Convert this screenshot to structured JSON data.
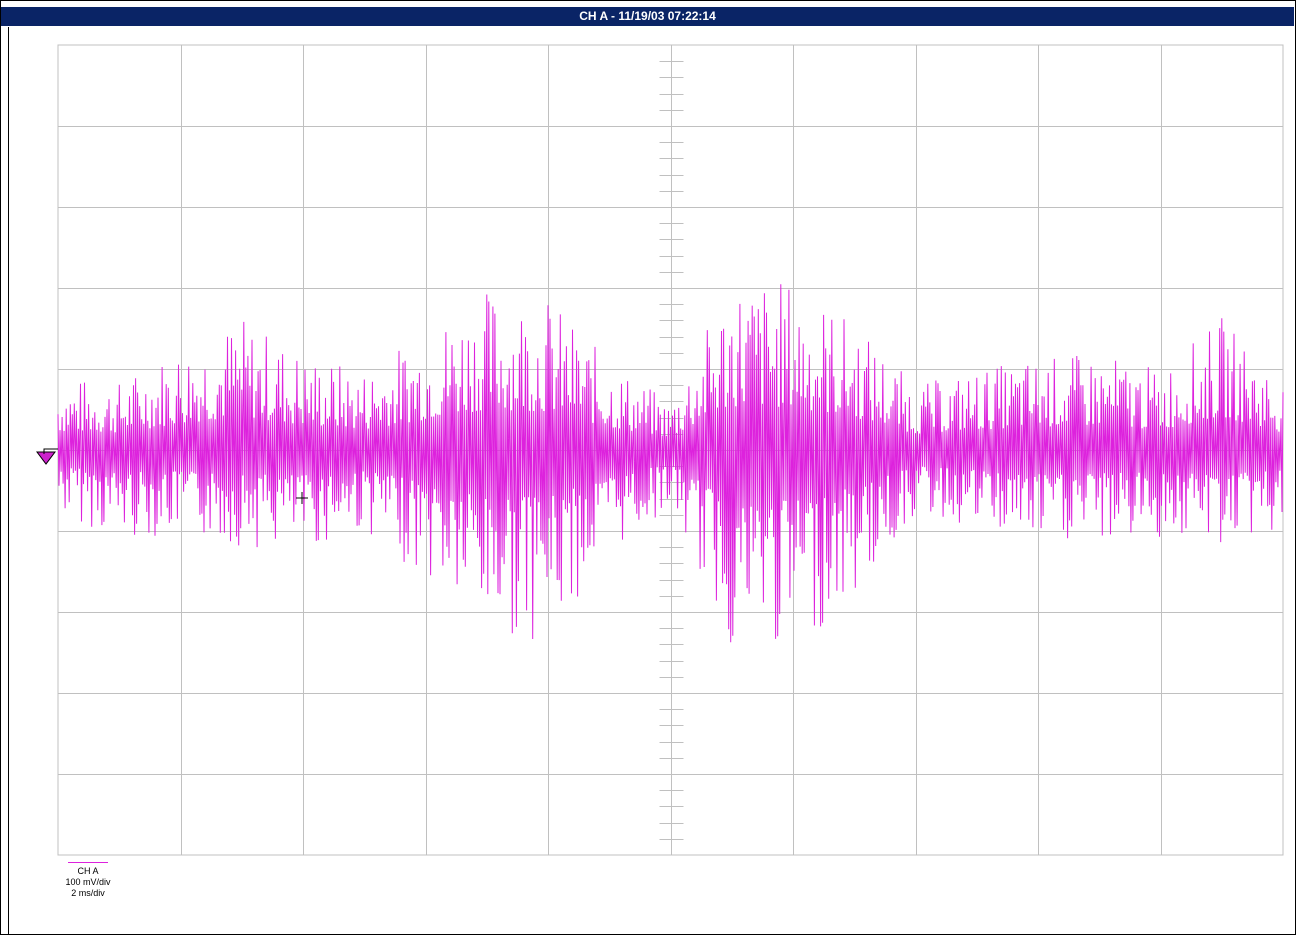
{
  "window": {
    "title": "CH A - 11/19/03 07:22:14"
  },
  "colors": {
    "titlebar": "#0a2466",
    "grid": "#c0c0c0",
    "trace": "#dd22dd",
    "marker": "#cc22cc"
  },
  "legend": {
    "channel": "CH A",
    "volts_per_div": "100 mV/div",
    "time_per_div": "2 ms/div"
  },
  "chart_data": {
    "type": "line",
    "title": "CH A - 11/19/03 07:22:14",
    "xlabel": "",
    "ylabel": "",
    "grid": true,
    "divisions": {
      "horizontal": 10,
      "vertical": 10
    },
    "x_unit": "ms",
    "y_unit": "mV",
    "xlim": [
      0,
      20
    ],
    "ylim": [
      -500,
      500
    ],
    "series": [
      {
        "name": "CH A",
        "envelope": {
          "x": [
            0,
            1,
            2,
            3,
            4,
            5,
            6,
            7,
            8,
            9,
            10,
            11,
            12,
            13,
            14,
            15,
            16,
            17,
            18,
            19,
            20
          ],
          "max": [
            90,
            85,
            130,
            165,
            120,
            100,
            150,
            200,
            190,
            110,
            60,
            215,
            210,
            160,
            80,
            100,
            115,
            120,
            100,
            165,
            85
          ],
          "min": [
            -80,
            -110,
            -105,
            -120,
            -125,
            -100,
            -160,
            -230,
            -235,
            -130,
            -70,
            -250,
            -250,
            -185,
            -80,
            -100,
            -120,
            -115,
            -110,
            -120,
            -100
          ]
        }
      }
    ],
    "trigger_level": 0
  }
}
